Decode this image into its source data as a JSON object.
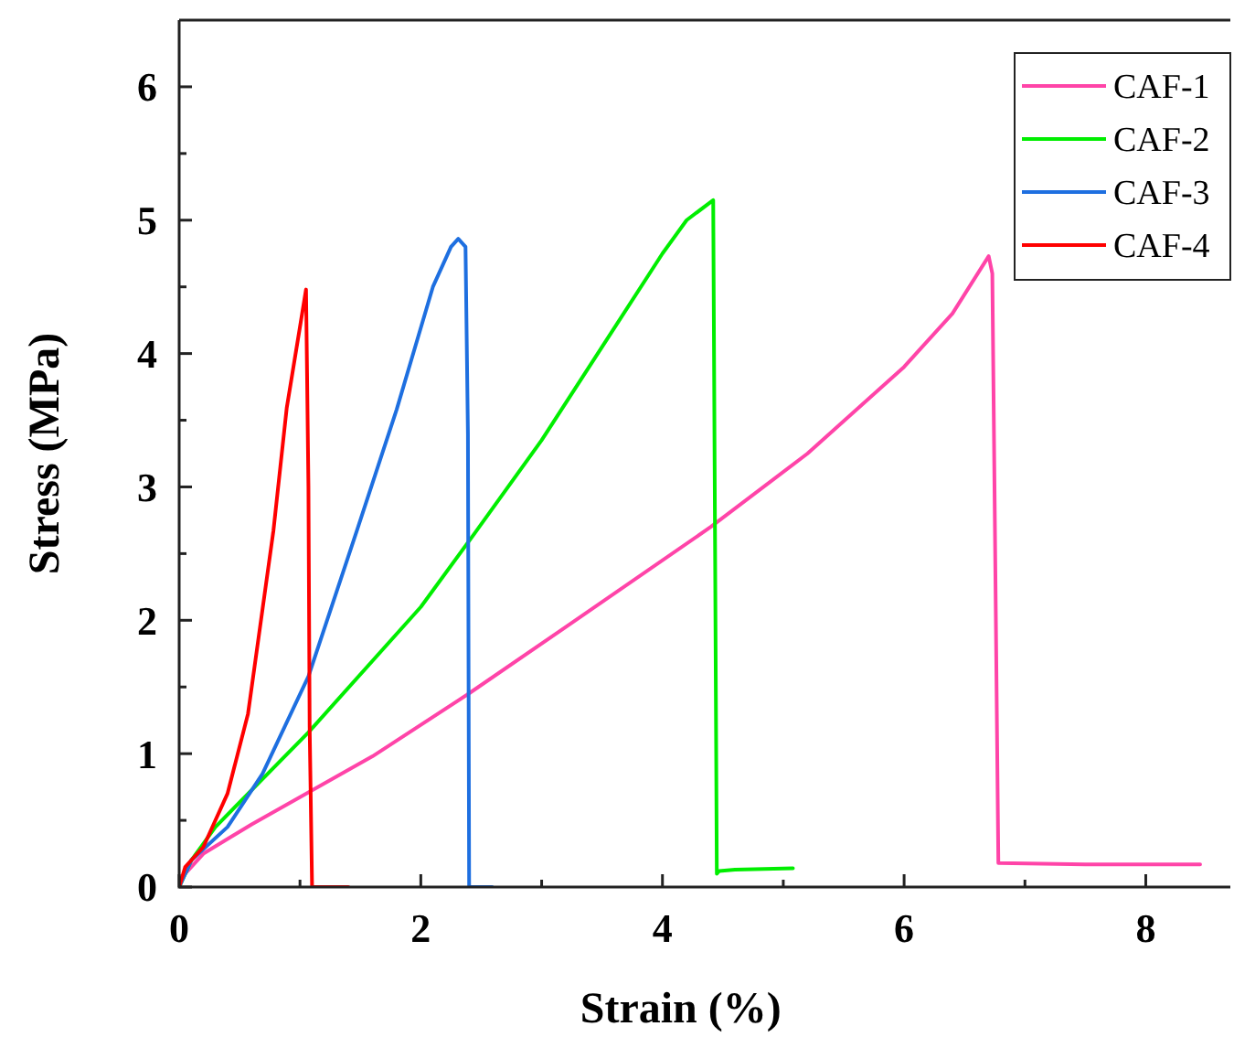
{
  "chart_data": {
    "type": "line",
    "xlabel": "Strain (%)",
    "ylabel": "Stress (MPa)",
    "xlim": [
      0,
      8.7
    ],
    "ylim": [
      0,
      6.5
    ],
    "xticks": [
      0,
      {
        "value": 1,
        "label": null
      },
      2,
      {
        "value": 3,
        "label": null
      },
      4,
      {
        "value": 5,
        "label": null
      },
      6,
      {
        "value": 7,
        "label": null
      },
      8
    ],
    "yticks": [
      0,
      {
        "value": 0.5,
        "label": null
      },
      1,
      {
        "value": 1.5,
        "label": null
      },
      2,
      {
        "value": 2.5,
        "label": null
      },
      3,
      {
        "value": 3.5,
        "label": null
      },
      4,
      {
        "value": 4.5,
        "label": null
      },
      5,
      {
        "value": 5.5,
        "label": null
      },
      6
    ],
    "legend": "top right",
    "grid": false,
    "line_style": "solid",
    "series": [
      {
        "name": "CAF-1",
        "color": "#ff44a8",
        "x": [
          0,
          0.2,
          0.6,
          1.07,
          1.6,
          2.38,
          3.2,
          4.4,
          5.2,
          6,
          6.4,
          6.7,
          6.73,
          6.78,
          7.5,
          8.45
        ],
        "values": [
          0.05,
          0.25,
          0.47,
          0.71,
          0.98,
          1.44,
          1.95,
          2.7,
          3.25,
          3.9,
          4.3,
          4.73,
          4.6,
          0.18,
          0.17,
          0.17
        ]
      },
      {
        "name": "CAF-2",
        "color": "#00ee00",
        "x": [
          0,
          0.1,
          0.3,
          1.07,
          2,
          2.42,
          3,
          3.5,
          4,
          4.2,
          4.42,
          4.45,
          4.47,
          4.6,
          5.08
        ],
        "values": [
          0,
          0.2,
          0.45,
          1.16,
          2.1,
          2.62,
          3.35,
          4.05,
          4.75,
          5.0,
          5.15,
          0.1,
          0.12,
          0.13,
          0.14
        ]
      },
      {
        "name": "CAF-3",
        "color": "#1e6fe0",
        "x": [
          0,
          0.1,
          0.4,
          0.69,
          1.07,
          1.47,
          1.8,
          2.1,
          2.25,
          2.31,
          2.37,
          2.39,
          2.4,
          2.45,
          2.59
        ],
        "values": [
          0,
          0.2,
          0.45,
          0.85,
          1.58,
          2.67,
          3.58,
          4.5,
          4.8,
          4.86,
          4.8,
          3.4,
          0,
          0,
          0
        ]
      },
      {
        "name": "CAF-4",
        "color": "#ff0000",
        "x": [
          0,
          0.05,
          0.2,
          0.4,
          0.57,
          0.78,
          0.89,
          1.0,
          1.05,
          1.07,
          1.08,
          1.1,
          1.4
        ],
        "values": [
          0,
          0.15,
          0.3,
          0.7,
          1.3,
          2.67,
          3.59,
          4.2,
          4.48,
          3.0,
          1.2,
          0,
          0
        ]
      }
    ]
  }
}
